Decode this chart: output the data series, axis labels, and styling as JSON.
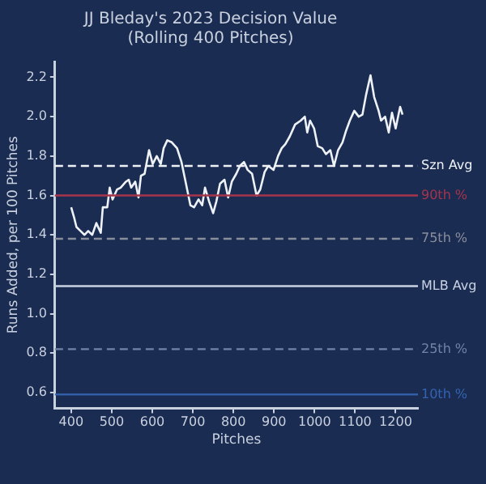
{
  "chart_data": {
    "type": "line",
    "title": [
      "JJ Bleday's 2023 Decision Value",
      "(Rolling 400 Pitches)"
    ],
    "xlabel": "Pitches",
    "ylabel": "Runs Added, per 100 Pitches",
    "xlim": [
      360,
      1255
    ],
    "xticks": [
      400,
      500,
      600,
      700,
      800,
      900,
      1000,
      1100,
      1200
    ],
    "ylim": [
      0.52,
      2.28
    ],
    "yticks": [
      {
        "value": 0.6,
        "label": "0.6"
      },
      {
        "value": 0.8,
        "label": "0.8"
      },
      {
        "value": 1.0,
        "label": "1.0"
      },
      {
        "value": 1.2,
        "label": "1.2"
      },
      {
        "value": 1.4,
        "label": "1.4"
      },
      {
        "value": 1.6,
        "label": "1.6"
      },
      {
        "value": 1.8,
        "label": "1.8"
      },
      {
        "value": 2.0,
        "label": "2.0"
      },
      {
        "value": 2.2,
        "label": "2.2"
      }
    ],
    "grid": false,
    "legend": false,
    "marker": "none",
    "line_style": "solid",
    "series": [
      {
        "color": "#eef1f6",
        "x": [
          400,
          407,
          413,
          423,
          433,
          442,
          452,
          462,
          473,
          478,
          489,
          495,
          502,
          513,
          522,
          535,
          542,
          548,
          558,
          566,
          572,
          581,
          592,
          601,
          611,
          621,
          628,
          637,
          648,
          661,
          672,
          681,
          694,
          703,
          714,
          723,
          730,
          740,
          750,
          758,
          767,
          778,
          787,
          796,
          807,
          816,
          826,
          835,
          846,
          857,
          866,
          877,
          886,
          899,
          910,
          919,
          928,
          939,
          952,
          966,
          976,
          982,
          989,
          999,
          1008,
          1019,
          1028,
          1039,
          1048,
          1058,
          1069,
          1078,
          1087,
          1098,
          1109,
          1118,
          1127,
          1138,
          1147,
          1158,
          1164,
          1174,
          1183,
          1191,
          1200,
          1211,
          1217
        ],
        "values": [
          1.54,
          1.49,
          1.44,
          1.42,
          1.4,
          1.42,
          1.4,
          1.46,
          1.41,
          1.54,
          1.54,
          1.64,
          1.58,
          1.63,
          1.64,
          1.67,
          1.68,
          1.64,
          1.67,
          1.59,
          1.7,
          1.71,
          1.83,
          1.76,
          1.8,
          1.76,
          1.84,
          1.88,
          1.87,
          1.84,
          1.77,
          1.68,
          1.55,
          1.54,
          1.58,
          1.55,
          1.64,
          1.57,
          1.51,
          1.57,
          1.66,
          1.68,
          1.59,
          1.67,
          1.71,
          1.75,
          1.77,
          1.73,
          1.71,
          1.6,
          1.63,
          1.72,
          1.75,
          1.73,
          1.8,
          1.84,
          1.86,
          1.9,
          1.96,
          1.98,
          2.0,
          1.92,
          1.98,
          1.94,
          1.85,
          1.84,
          1.81,
          1.83,
          1.75,
          1.83,
          1.87,
          1.93,
          1.98,
          2.03,
          2.0,
          2.01,
          2.11,
          2.21,
          2.1,
          2.03,
          1.98,
          2.0,
          1.92,
          2.02,
          1.94,
          2.05,
          2.01
        ]
      }
    ],
    "ref_lines": [
      {
        "axis": "y",
        "value": 1.75,
        "label": "Szn Avg",
        "color": "#eef1f6",
        "line_style": "dashed"
      },
      {
        "axis": "y",
        "value": 1.6,
        "label": "90th %",
        "color": "#a8344c",
        "line_style": "solid"
      },
      {
        "axis": "y",
        "value": 1.38,
        "label": "75th %",
        "color": "#8a8e9c",
        "line_style": "dashed"
      },
      {
        "axis": "y",
        "value": 1.14,
        "label": "MLB Avg",
        "color": "#c9d2e3",
        "line_style": "solid"
      },
      {
        "axis": "y",
        "value": 0.82,
        "label": "25th %",
        "color": "#7283a6",
        "line_style": "dashed"
      },
      {
        "axis": "y",
        "value": 0.59,
        "label": "10th %",
        "color": "#3463b0",
        "line_style": "solid"
      }
    ]
  }
}
